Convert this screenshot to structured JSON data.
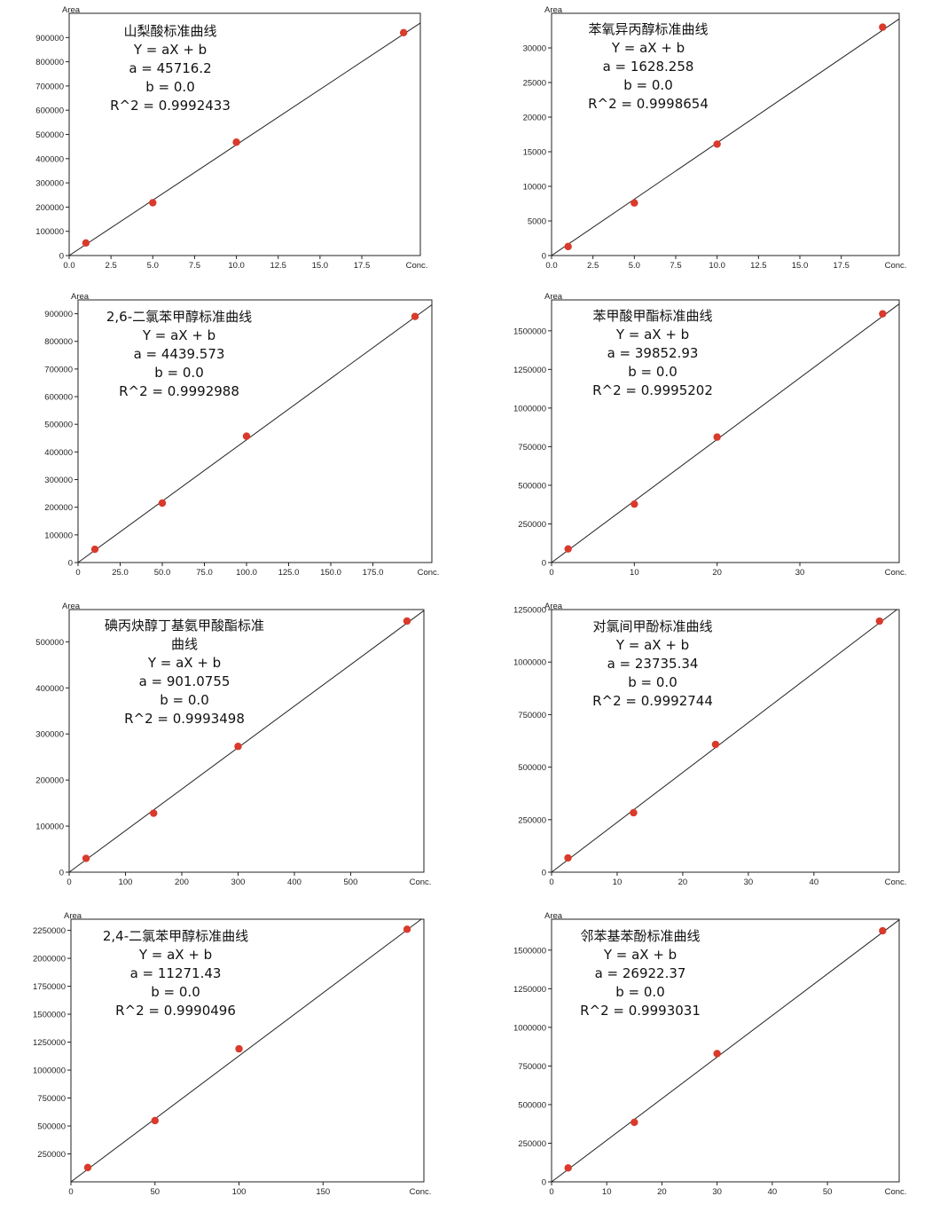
{
  "chart_data": [
    {
      "type": "scatter",
      "ylabel": "Area",
      "xlabel": "Conc.",
      "xlim": [
        0,
        21
      ],
      "ylim": [
        0,
        1000000
      ],
      "x_ticks": [
        0,
        2.5,
        5,
        7.5,
        10,
        12.5,
        15,
        17.5
      ],
      "x_tick_labels": [
        "0.0",
        "2.5",
        "5.0",
        "7.5",
        "10.0",
        "12.5",
        "15.0",
        "17.5"
      ],
      "y_ticks": [
        0,
        100000,
        200000,
        300000,
        400000,
        500000,
        600000,
        700000,
        800000,
        900000
      ],
      "annotation": [
        "山梨酸标准曲线",
        "Y = aX + b",
        "a = 45716.2",
        "b = 0.0",
        "R^2 = 0.9992433"
      ],
      "fit": {
        "a": 45716.2,
        "b": 0.0
      },
      "points": [
        [
          1,
          52000
        ],
        [
          5,
          218000
        ],
        [
          10,
          468000
        ],
        [
          20,
          920000
        ]
      ]
    },
    {
      "type": "scatter",
      "ylabel": "Area",
      "xlabel": "Conc.",
      "xlim": [
        0,
        21
      ],
      "ylim": [
        0,
        35000
      ],
      "x_ticks": [
        0,
        2.5,
        5,
        7.5,
        10,
        12.5,
        15,
        17.5
      ],
      "x_tick_labels": [
        "0.0",
        "2.5",
        "5.0",
        "7.5",
        "10.0",
        "12.5",
        "15.0",
        "17.5"
      ],
      "y_ticks": [
        0,
        5000,
        10000,
        15000,
        20000,
        25000,
        30000
      ],
      "annotation": [
        "苯氧异丙醇标准曲线",
        "Y = aX + b",
        "a = 1628.258",
        "b = 0.0",
        "R^2 = 0.9998654"
      ],
      "fit": {
        "a": 1628.258,
        "b": 0.0
      },
      "points": [
        [
          1,
          1300
        ],
        [
          5,
          7600
        ],
        [
          10,
          16100
        ],
        [
          20,
          33000
        ]
      ]
    },
    {
      "type": "scatter",
      "ylabel": "Area",
      "xlabel": "Conc.",
      "xlim": [
        0,
        210
      ],
      "ylim": [
        0,
        950000
      ],
      "x_ticks": [
        0,
        25,
        50,
        75,
        100,
        125,
        150,
        175
      ],
      "x_tick_labels": [
        "0",
        "25.0",
        "50.0",
        "75.0",
        "100.0",
        "125.0",
        "150.0",
        "175.0"
      ],
      "y_ticks": [
        0,
        100000,
        200000,
        300000,
        400000,
        500000,
        600000,
        700000,
        800000,
        900000
      ],
      "annotation": [
        "2,6-二氯苯甲醇标准曲线",
        "Y = aX + b",
        "a = 4439.573",
        "b = 0.0",
        "R^2 = 0.9992988"
      ],
      "fit": {
        "a": 4439.573,
        "b": 0.0
      },
      "points": [
        [
          10,
          48000
        ],
        [
          50,
          215000
        ],
        [
          100,
          457000
        ],
        [
          200,
          890000
        ]
      ]
    },
    {
      "type": "scatter",
      "ylabel": "Area",
      "xlabel": "Conc.",
      "xlim": [
        0,
        42
      ],
      "ylim": [
        0,
        1700000
      ],
      "x_ticks": [
        0,
        10,
        20,
        30
      ],
      "x_tick_labels": [
        "0",
        "10",
        "20",
        "30"
      ],
      "y_ticks": [
        0,
        250000,
        500000,
        750000,
        1000000,
        1250000,
        1500000
      ],
      "annotation": [
        "苯甲酸甲酯标准曲线",
        "Y = aX + b",
        "a = 39852.93",
        "b = 0.0",
        "R^2 = 0.9995202"
      ],
      "fit": {
        "a": 39852.93,
        "b": 0.0
      },
      "points": [
        [
          2,
          88000
        ],
        [
          10,
          378000
        ],
        [
          20,
          812000
        ],
        [
          40,
          1610000
        ]
      ]
    },
    {
      "type": "scatter",
      "ylabel": "Area",
      "xlabel": "Conc.",
      "xlim": [
        0,
        630
      ],
      "ylim": [
        0,
        570000
      ],
      "x_ticks": [
        0,
        100,
        200,
        300,
        400,
        500
      ],
      "x_tick_labels": [
        "0",
        "100",
        "200",
        "300",
        "400",
        "500"
      ],
      "y_ticks": [
        0,
        100000,
        200000,
        300000,
        400000,
        500000
      ],
      "annotation": [
        "碘丙炔醇丁基氨甲酸酯标准",
        "曲线",
        "Y = aX + b",
        "a = 901.0755",
        "b = 0.0",
        "R^2 = 0.9993498"
      ],
      "fit": {
        "a": 901.0755,
        "b": 0.0
      },
      "points": [
        [
          30,
          30000
        ],
        [
          150,
          128000
        ],
        [
          300,
          273000
        ],
        [
          600,
          545000
        ]
      ]
    },
    {
      "type": "scatter",
      "ylabel": "Area",
      "xlabel": "Conc.",
      "xlim": [
        0,
        53
      ],
      "ylim": [
        0,
        1250000
      ],
      "x_ticks": [
        0,
        10,
        20,
        30,
        40
      ],
      "x_tick_labels": [
        "0",
        "10",
        "20",
        "30",
        "40"
      ],
      "y_ticks": [
        0,
        250000,
        500000,
        750000,
        1000000,
        1250000
      ],
      "annotation": [
        "对氯间甲酚标准曲线",
        "Y = aX + b",
        "a = 23735.34",
        "b = 0.0",
        "R^2 = 0.9992744"
      ],
      "fit": {
        "a": 23735.34,
        "b": 0.0
      },
      "points": [
        [
          2.5,
          68000
        ],
        [
          12.5,
          283000
        ],
        [
          25,
          608000
        ],
        [
          50,
          1195000
        ]
      ]
    },
    {
      "type": "scatter",
      "ylabel": "Area",
      "xlabel": "Conc.",
      "xlim": [
        0,
        210
      ],
      "ylim": [
        0,
        2350000
      ],
      "x_ticks": [
        0,
        50,
        100,
        150
      ],
      "x_tick_labels": [
        "0",
        "50",
        "100",
        "150"
      ],
      "y_ticks": [
        250000,
        500000,
        750000,
        1000000,
        1250000,
        1500000,
        1750000,
        2000000,
        2250000
      ],
      "annotation": [
        "2,4-二氯苯甲醇标准曲线",
        "Y = aX + b",
        "a = 11271.43",
        "b = 0.0",
        "R^2 = 0.9990496"
      ],
      "fit": {
        "a": 11271.43,
        "b": 0.0
      },
      "points": [
        [
          10,
          128000
        ],
        [
          50,
          548000
        ],
        [
          100,
          1190000
        ],
        [
          200,
          2260000
        ]
      ]
    },
    {
      "type": "scatter",
      "ylabel": "Area",
      "xlabel": "Conc.",
      "xlim": [
        0,
        63
      ],
      "ylim": [
        0,
        1700000
      ],
      "x_ticks": [
        0,
        10,
        20,
        30,
        40,
        50
      ],
      "x_tick_labels": [
        "0",
        "10",
        "20",
        "30",
        "40",
        "50"
      ],
      "y_ticks": [
        0,
        250000,
        500000,
        750000,
        1000000,
        1250000,
        1500000
      ],
      "annotation": [
        "邻苯基苯酚标准曲线",
        "Y = aX + b",
        "a = 26922.37",
        "b = 0.0",
        "R^2 = 0.9993031"
      ],
      "fit": {
        "a": 26922.37,
        "b": 0.0
      },
      "points": [
        [
          3,
          90000
        ],
        [
          15,
          385000
        ],
        [
          30,
          830000
        ],
        [
          60,
          1625000
        ]
      ]
    }
  ],
  "colors": {
    "point": "#d93a2b",
    "line": "#222222",
    "axis": "#222222"
  }
}
